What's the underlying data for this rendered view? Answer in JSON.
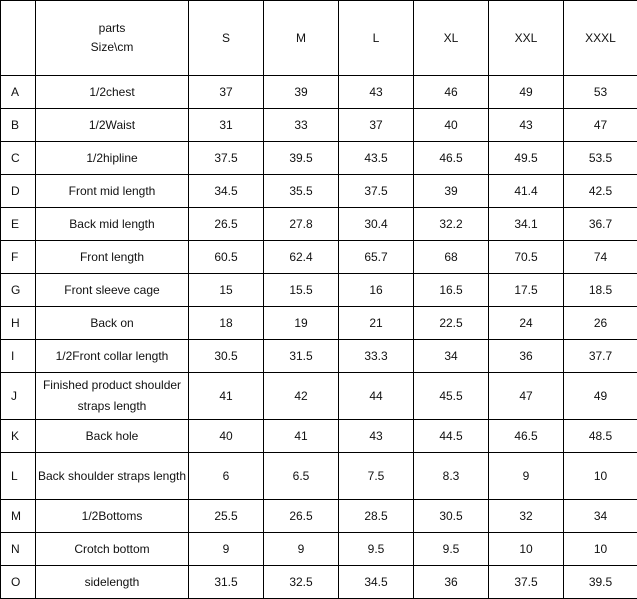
{
  "header": {
    "parts_label": "parts",
    "size_unit_label": "Size\\cm",
    "sizes": [
      "S",
      "M",
      "L",
      "XL",
      "XXL",
      "XXXL"
    ]
  },
  "rows": [
    {
      "letter": "A",
      "part": "1/2chest",
      "values": [
        "37",
        "39",
        "43",
        "46",
        "49",
        "53"
      ]
    },
    {
      "letter": "B",
      "part": "1/2Waist",
      "values": [
        "31",
        "33",
        "37",
        "40",
        "43",
        "47"
      ]
    },
    {
      "letter": "C",
      "part": "1/2hipline",
      "values": [
        "37.5",
        "39.5",
        "43.5",
        "46.5",
        "49.5",
        "53.5"
      ]
    },
    {
      "letter": "D",
      "part": "Front mid length",
      "values": [
        "34.5",
        "35.5",
        "37.5",
        "39",
        "41.4",
        "42.5"
      ]
    },
    {
      "letter": "E",
      "part": "Back mid length",
      "values": [
        "26.5",
        "27.8",
        "30.4",
        "32.2",
        "34.1",
        "36.7"
      ]
    },
    {
      "letter": "F",
      "part": "Front length",
      "values": [
        "60.5",
        "62.4",
        "65.7",
        "68",
        "70.5",
        "74"
      ]
    },
    {
      "letter": "G",
      "part": "Front sleeve cage",
      "values": [
        "15",
        "15.5",
        "16",
        "16.5",
        "17.5",
        "18.5"
      ]
    },
    {
      "letter": "H",
      "part": "Back on",
      "values": [
        "18",
        "19",
        "21",
        "22.5",
        "24",
        "26"
      ]
    },
    {
      "letter": "I",
      "part": "1/2Front collar length",
      "values": [
        "30.5",
        "31.5",
        "33.3",
        "34",
        "36",
        "37.7"
      ]
    },
    {
      "letter": "J",
      "part": "Finished product shoulder straps length",
      "values": [
        "41",
        "42",
        "44",
        "45.5",
        "47",
        "49"
      ]
    },
    {
      "letter": "K",
      "part": "Back hole",
      "values": [
        "40",
        "41",
        "43",
        "44.5",
        "46.5",
        "48.5"
      ]
    },
    {
      "letter": "L",
      "part": "Back shoulder straps length",
      "values": [
        "6",
        "6.5",
        "7.5",
        "8.3",
        "9",
        "10"
      ]
    },
    {
      "letter": "M",
      "part": "1/2Bottoms",
      "values": [
        "25.5",
        "26.5",
        "28.5",
        "30.5",
        "32",
        "34"
      ]
    },
    {
      "letter": "N",
      "part": "Crotch bottom",
      "values": [
        "9",
        "9",
        "9.5",
        "9.5",
        "10",
        "10"
      ]
    },
    {
      "letter": "O",
      "part": "sidelength",
      "values": [
        "31.5",
        "32.5",
        "34.5",
        "36",
        "37.5",
        "39.5"
      ]
    }
  ]
}
